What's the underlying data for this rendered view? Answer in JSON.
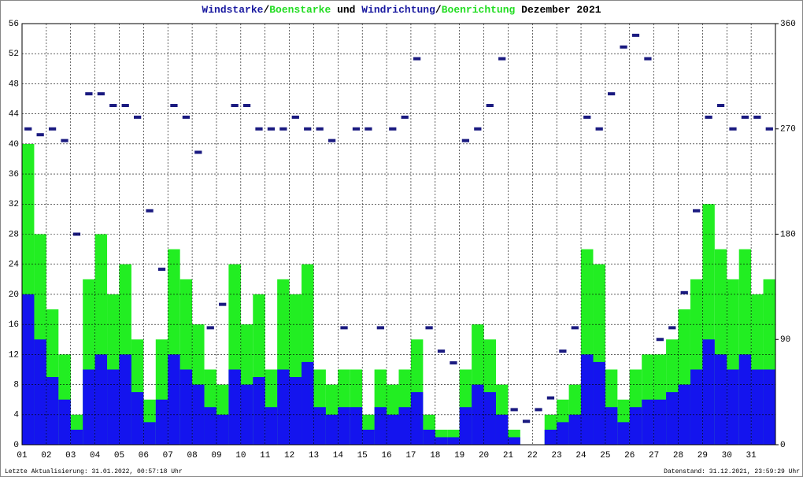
{
  "chart_data": {
    "type": "bar",
    "title": [
      {
        "text": "Windstarke",
        "color": "#1a1aa0"
      },
      {
        "text": "/",
        "color": "#000000"
      },
      {
        "text": "Boenstarke",
        "color": "#22dd22"
      },
      {
        "text": " und ",
        "color": "#000000"
      },
      {
        "text": "Windrichtung",
        "color": "#1a1aa0"
      },
      {
        "text": "/",
        "color": "#000000"
      },
      {
        "text": "Boenrichtung",
        "color": "#22dd22"
      },
      {
        "text": " Dezember 2021",
        "color": "#000000"
      }
    ],
    "footer_left": "Letzte Aktualisierung: 31.01.2022, 00:57:18 Uhr",
    "footer_right": "Datenstand: 31.12.2021, 23:59:29 Uhr",
    "x": [
      1,
      1.5,
      2,
      2.5,
      3,
      3.5,
      4,
      4.5,
      5,
      5.5,
      6,
      6.5,
      7,
      7.5,
      8,
      8.5,
      9,
      9.5,
      10,
      10.5,
      11,
      11.5,
      12,
      12.5,
      13,
      13.5,
      14,
      14.5,
      15,
      15.5,
      16,
      16.5,
      17,
      17.5,
      18,
      18.5,
      19,
      19.5,
      20,
      20.5,
      21,
      21.5,
      22,
      22.5,
      23,
      23.5,
      24,
      24.5,
      25,
      25.5,
      26,
      26.5,
      27,
      27.5,
      28,
      28.5,
      29,
      29.5,
      30,
      30.5,
      31,
      31.5
    ],
    "xlim": [
      1,
      32
    ],
    "xticks": [
      {
        "value": 1,
        "label": "01"
      },
      {
        "value": 2,
        "label": "02"
      },
      {
        "value": 3,
        "label": "03"
      },
      {
        "value": 4,
        "label": "04"
      },
      {
        "value": 5,
        "label": "05"
      },
      {
        "value": 6,
        "label": "06"
      },
      {
        "value": 7,
        "label": "07"
      },
      {
        "value": 8,
        "label": "08"
      },
      {
        "value": 9,
        "label": "09"
      },
      10,
      11,
      12,
      13,
      14,
      15,
      16,
      17,
      18,
      19,
      20,
      21,
      22,
      23,
      24,
      25,
      26,
      27,
      28,
      29,
      30,
      31
    ],
    "ylim": [
      0,
      56
    ],
    "yticks": [
      0,
      4,
      8,
      12,
      16,
      20,
      24,
      28,
      32,
      36,
      40,
      44,
      48,
      52,
      56
    ],
    "y2lim": [
      0,
      360
    ],
    "y2ticks": [
      0,
      90,
      180,
      270,
      360
    ],
    "grid": true,
    "series": [
      {
        "name": "Boenstarke",
        "color": "#22ee22",
        "kind": "bar",
        "values": [
          40,
          28,
          18,
          12,
          4,
          22,
          28,
          20,
          24,
          14,
          6,
          14,
          26,
          22,
          16,
          10,
          8,
          24,
          16,
          20,
          10,
          22,
          20,
          24,
          10,
          8,
          10,
          10,
          4,
          10,
          8,
          10,
          14,
          4,
          2,
          2,
          10,
          16,
          14,
          8,
          2,
          0,
          0,
          4,
          6,
          8,
          26,
          24,
          10,
          6,
          10,
          12,
          12,
          14,
          18,
          22,
          32,
          26,
          22,
          26,
          20,
          22
        ]
      },
      {
        "name": "Windstarke",
        "color": "#1414ee",
        "kind": "bar",
        "values": [
          20,
          14,
          9,
          6,
          2,
          10,
          12,
          10,
          12,
          7,
          3,
          6,
          12,
          10,
          8,
          5,
          4,
          10,
          8,
          9,
          5,
          10,
          9,
          11,
          5,
          4,
          5,
          5,
          2,
          5,
          4,
          5,
          7,
          2,
          1,
          1,
          5,
          8,
          7,
          4,
          1,
          0,
          0,
          2,
          3,
          4,
          12,
          11,
          5,
          3,
          5,
          6,
          6,
          7,
          8,
          10,
          14,
          12,
          10,
          12,
          10,
          10
        ]
      },
      {
        "name": "Windrichtung",
        "color": "#1a1a80",
        "kind": "scatter",
        "axis": "y2",
        "values": [
          270,
          265,
          270,
          260,
          180,
          300,
          300,
          290,
          290,
          280,
          200,
          150,
          290,
          280,
          250,
          100,
          120,
          290,
          290,
          270,
          270,
          270,
          280,
          270,
          270,
          260,
          100,
          270,
          270,
          100,
          270,
          280,
          330,
          100,
          80,
          70,
          260,
          270,
          290,
          330,
          30,
          20,
          30,
          40,
          80,
          100,
          280,
          270,
          300,
          340,
          350,
          330,
          90,
          100,
          130,
          200,
          280,
          290,
          270,
          280,
          280,
          270
        ]
      }
    ]
  }
}
